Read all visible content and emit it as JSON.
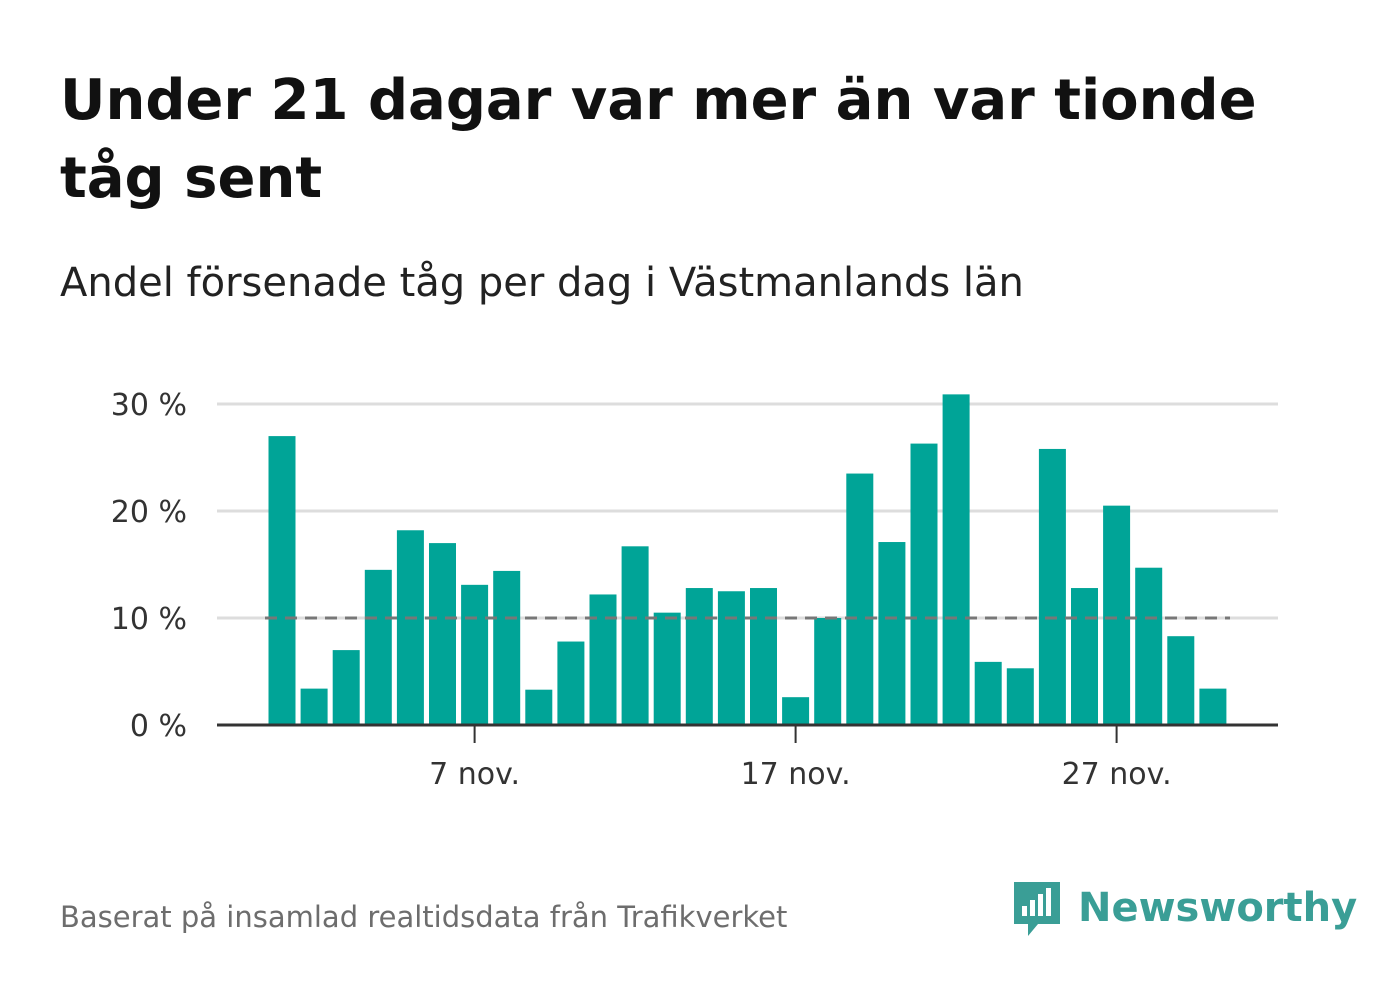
{
  "title": "Under 21 dagar var mer än var tionde tåg sent",
  "subtitle": "Andel försenade tåg per dag i Västmanlands län",
  "footer": "Baserat på insamlad realtidsdata från Trafikverket",
  "logo": {
    "name": "Newsworthy",
    "icon": "newsworthy-logo-icon",
    "color": "#3a9e96"
  },
  "colors": {
    "bar": "#00a497",
    "grid": "#dddddd",
    "axis": "#333333",
    "reference": "#777777"
  },
  "chart_data": {
    "type": "bar",
    "title": "Under 21 dagar var mer än var tionde tåg sent",
    "subtitle": "Andel försenade tåg per dag i Västmanlands län",
    "xlabel": "",
    "ylabel": "",
    "x": [
      "1 nov.",
      "2 nov.",
      "3 nov.",
      "4 nov.",
      "5 nov.",
      "6 nov.",
      "7 nov.",
      "8 nov.",
      "9 nov.",
      "10 nov.",
      "11 nov.",
      "12 nov.",
      "13 nov.",
      "14 nov.",
      "15 nov.",
      "16 nov.",
      "17 nov.",
      "18 nov.",
      "19 nov.",
      "20 nov.",
      "21 nov.",
      "22 nov.",
      "23 nov.",
      "24 nov.",
      "25 nov.",
      "26 nov.",
      "27 nov.",
      "28 nov.",
      "29 nov.",
      "30 nov."
    ],
    "values": [
      27.0,
      3.4,
      7.0,
      14.5,
      18.2,
      17.0,
      13.1,
      14.4,
      3.3,
      7.8,
      12.2,
      16.7,
      10.5,
      12.8,
      12.5,
      12.8,
      2.6,
      10.0,
      23.5,
      17.1,
      26.3,
      30.9,
      5.9,
      5.3,
      25.8,
      12.8,
      20.5,
      14.7,
      8.3,
      3.4
    ],
    "x_ticks": [
      "7 nov.",
      "17 nov.",
      "27 nov."
    ],
    "y_ticks": [
      "0 %",
      "10 %",
      "20 %",
      "30 %"
    ],
    "y_tick_values": [
      0,
      10,
      20,
      30
    ],
    "ylim": [
      0,
      31
    ],
    "reference_line": 10,
    "grid": true,
    "legend": "none"
  }
}
